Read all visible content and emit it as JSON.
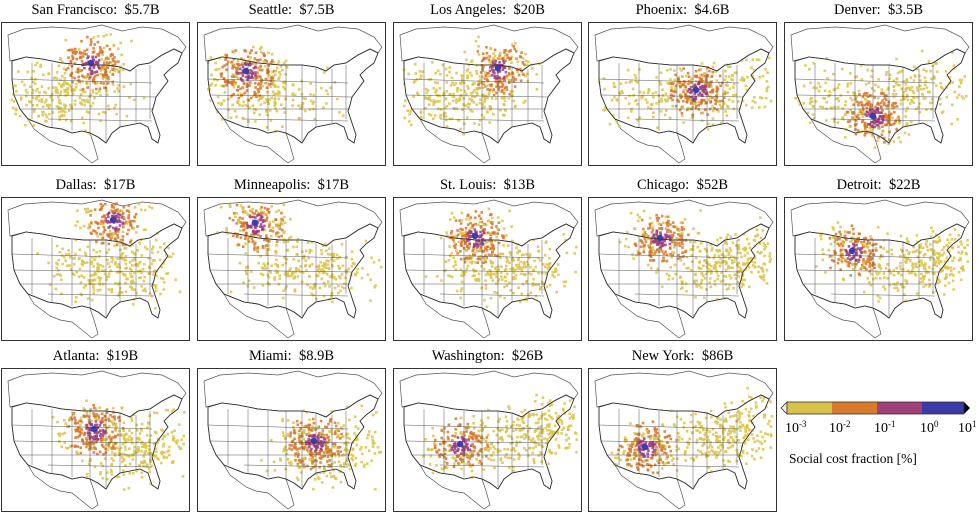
{
  "panels": [
    {
      "city": "San Francisco",
      "cost": "$5.7B",
      "hub": [
        20,
        89
      ],
      "reach": 0.85,
      "spread": "west"
    },
    {
      "city": "Seattle",
      "cost": "$7.5B",
      "hub": [
        28,
        48
      ],
      "reach": 0.8,
      "spread": "west"
    },
    {
      "city": "Los Angeles",
      "cost": "$20B",
      "hub": [
        25,
        104
      ],
      "reach": 0.9,
      "spread": "west"
    },
    {
      "city": "Phoenix",
      "cost": "$4.6B",
      "hub": [
        47,
        107
      ],
      "reach": 0.85,
      "spread": "wide"
    },
    {
      "city": "Denver",
      "cost": "$3.5B",
      "hub": [
        73,
        88
      ],
      "reach": 0.95,
      "spread": "wide"
    },
    {
      "city": "Dallas",
      "cost": "$17B",
      "hub": [
        102,
        298
      ],
      "reach": 0.9,
      "spread": "central"
    },
    {
      "city": "Minneapolis",
      "cost": "$17B",
      "hub": [
        105,
        244
      ],
      "reach": 0.9,
      "spread": "central"
    },
    {
      "city": "St. Louis",
      "cost": "$13B",
      "hub": [
        118,
        268
      ],
      "reach": 0.95,
      "spread": "central"
    },
    {
      "city": "Chicago",
      "cost": "$52B",
      "hub": [
        120,
        258
      ],
      "reach": 1.0,
      "spread": "east"
    },
    {
      "city": "Detroit",
      "cost": "$22B",
      "hub": [
        133,
        254
      ],
      "reach": 0.9,
      "spread": "east"
    },
    {
      "city": "Atlanta",
      "cost": "$19B",
      "hub": [
        140,
        466
      ],
      "reach": 0.95,
      "spread": "southeast"
    },
    {
      "city": "Miami",
      "cost": "$8.9B",
      "hub": [
        152,
        490
      ],
      "reach": 0.85,
      "spread": "southeast"
    },
    {
      "city": "Washington",
      "cost": "$26B",
      "hub": [
        155,
        440
      ],
      "reach": 0.95,
      "spread": "east"
    },
    {
      "city": "New York",
      "cost": "$86B",
      "hub": [
        158,
        430
      ],
      "reach": 1.0,
      "spread": "east"
    }
  ],
  "colorbar": {
    "label": "Social cost fraction [%]",
    "ticks": [
      {
        "base": "10",
        "exp": "-3"
      },
      {
        "base": "10",
        "exp": "-2"
      },
      {
        "base": "10",
        "exp": "-1"
      },
      {
        "base": "10",
        "exp": "0"
      },
      {
        "base": "10",
        "exp": "1"
      }
    ],
    "colors": [
      "#d9c24a",
      "#d97a2a",
      "#a0407a",
      "#3b3aa8"
    ],
    "min_color": "#f4eedc",
    "max_color": "#000000"
  },
  "colors": {
    "yellow": "#dcc448",
    "orange": "#d8762c",
    "magenta": "#9c3e7c",
    "blue": "#3d3cae",
    "border": "#444444"
  }
}
